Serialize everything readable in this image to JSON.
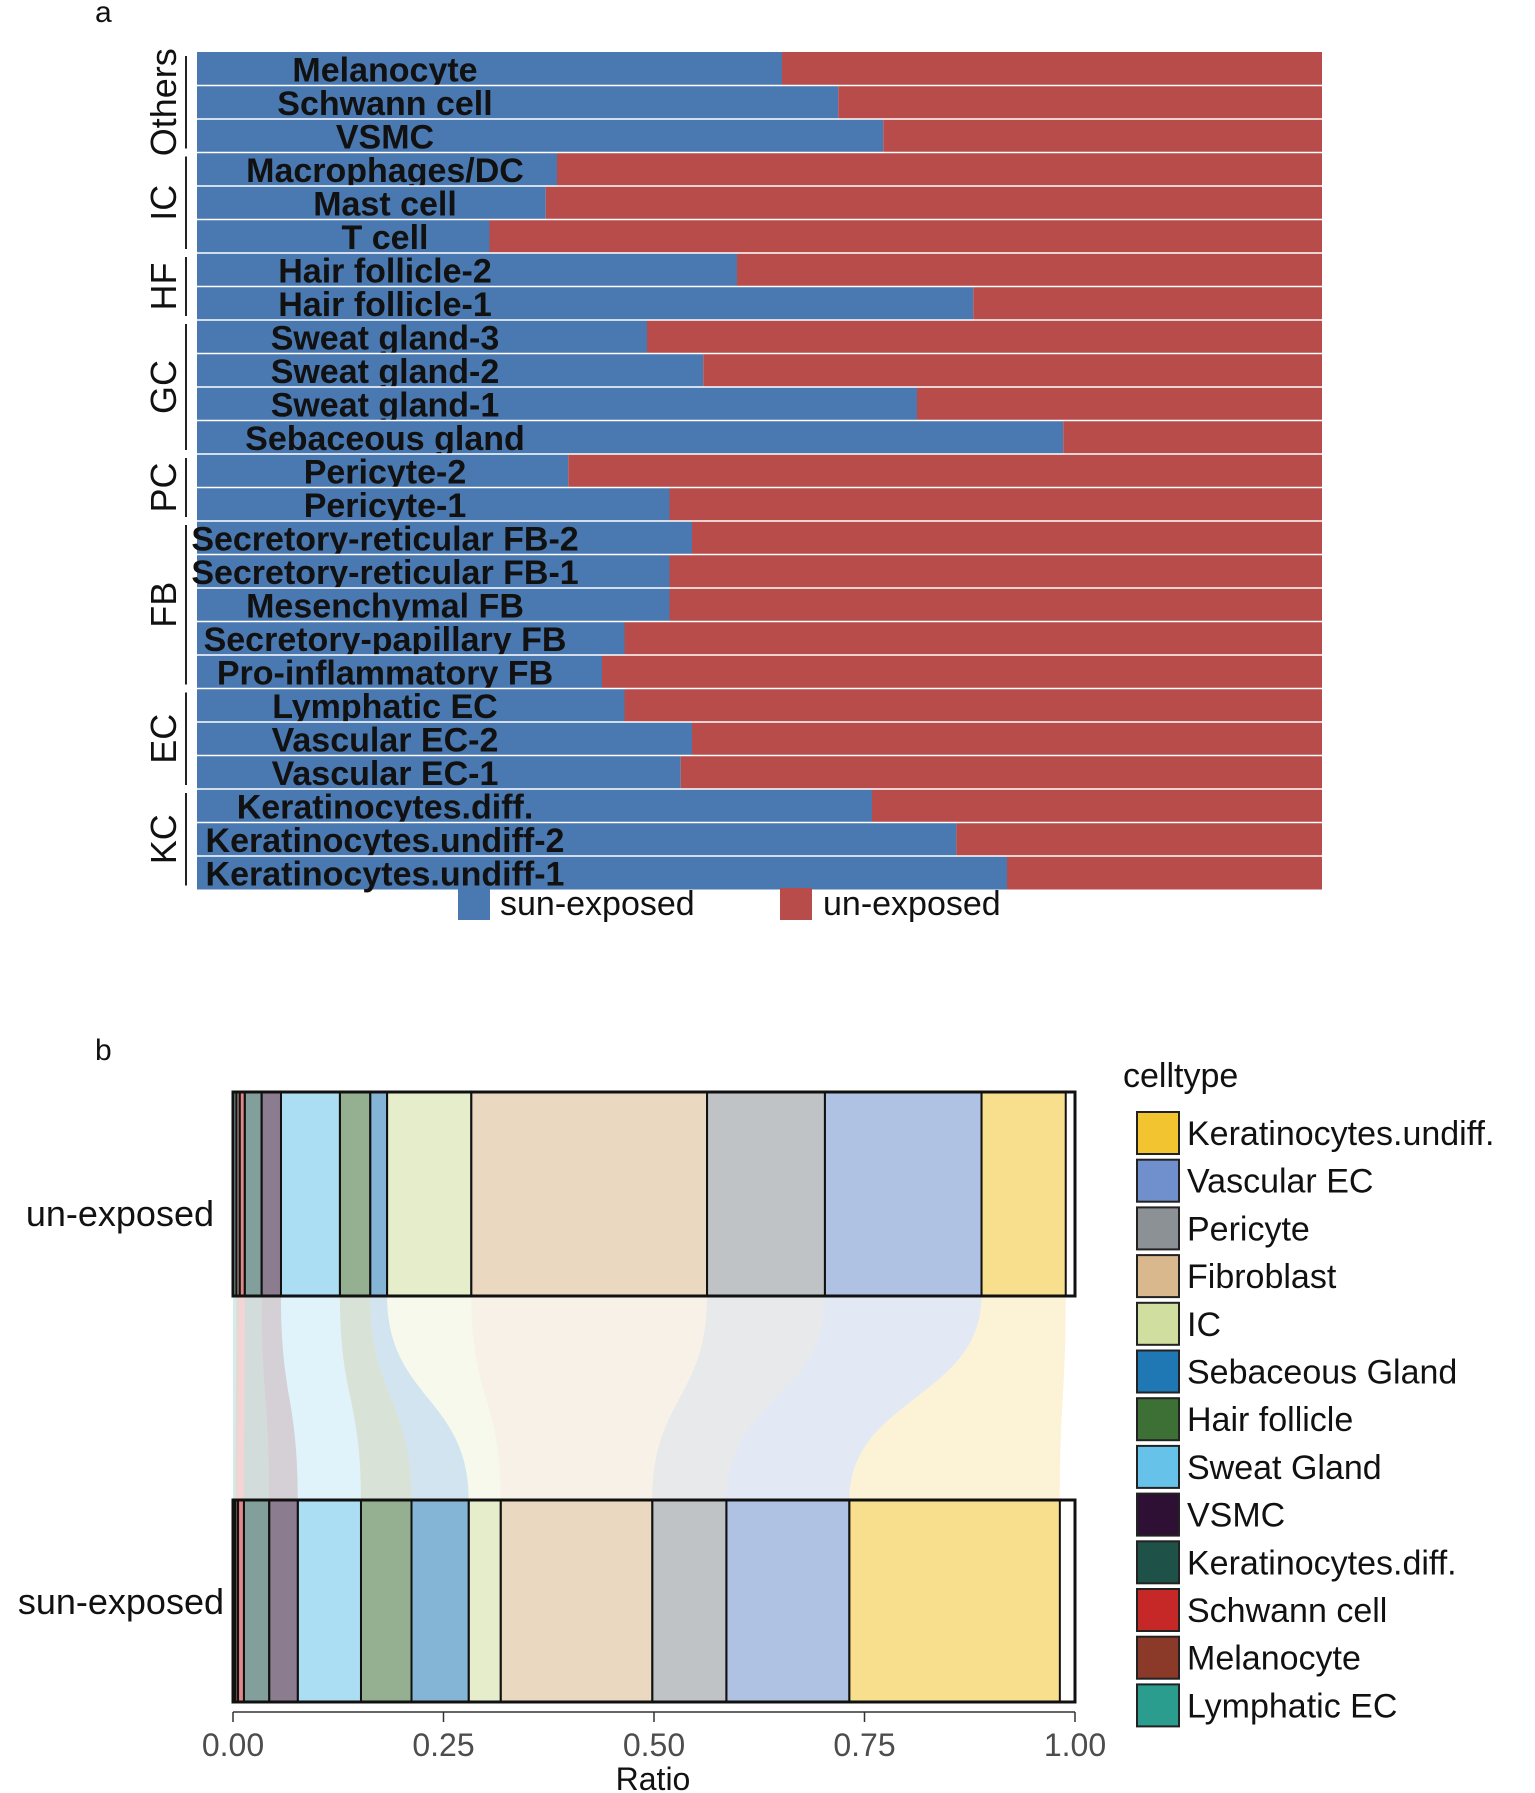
{
  "panel_a": {
    "letter": "a",
    "colors": {
      "sun": "#4a78b0",
      "un": "#b84c4b"
    },
    "legend": [
      {
        "label": "sun-exposed",
        "color": "#4a78b0"
      },
      {
        "label": "un-exposed",
        "color": "#b84c4b"
      }
    ],
    "groups": [
      {
        "label": "Others",
        "start": 0,
        "end": 2
      },
      {
        "label": "IC",
        "start": 3,
        "end": 5
      },
      {
        "label": "HF",
        "start": 6,
        "end": 7
      },
      {
        "label": "GC",
        "start": 8,
        "end": 11
      },
      {
        "label": "PC",
        "start": 12,
        "end": 13
      },
      {
        "label": "FB",
        "start": 14,
        "end": 18
      },
      {
        "label": "EC",
        "start": 19,
        "end": 21
      },
      {
        "label": "KC",
        "start": 22,
        "end": 24
      }
    ]
  },
  "panel_b": {
    "letter": "b",
    "legend_title": "celltype"
  },
  "chart_data": [
    {
      "type": "bar",
      "stacked": "horizontal-proportion",
      "title": "",
      "xlabel": "",
      "ylabel": "",
      "categories": [
        "Melanocyte",
        "Schwann cell",
        "VSMC",
        "Macrophages/DC",
        "Mast cell",
        "T cell",
        "Hair follicle-2",
        "Hair follicle-1",
        "Sweat gland-3",
        "Sweat gland-2",
        "Sweat gland-1",
        "Sebaceous gland",
        "Pericyte-2",
        "Pericyte-1",
        "Secretory-reticular FB-2",
        "Secretory-reticular FB-1",
        "Mesenchymal FB",
        "Secretory-papillary FB",
        "Pro-inflammatory FB",
        "Lymphatic EC",
        "Vascular EC-2",
        "Vascular EC-1",
        "Keratinocytes.diff.",
        "Keratinocytes.undiff-2",
        "Keratinocytes.undiff-1"
      ],
      "series": [
        {
          "name": "sun-exposed",
          "values": [
            0.52,
            0.57,
            0.61,
            0.32,
            0.31,
            0.26,
            0.48,
            0.69,
            0.4,
            0.45,
            0.64,
            0.77,
            0.33,
            0.42,
            0.44,
            0.42,
            0.42,
            0.38,
            0.36,
            0.38,
            0.44,
            0.43,
            0.6,
            0.675,
            0.72
          ]
        },
        {
          "name": "un-exposed",
          "values": [
            0.48,
            0.43,
            0.39,
            0.68,
            0.69,
            0.74,
            0.52,
            0.31,
            0.6,
            0.55,
            0.36,
            0.23,
            0.67,
            0.58,
            0.56,
            0.58,
            0.58,
            0.62,
            0.64,
            0.62,
            0.56,
            0.57,
            0.4,
            0.325,
            0.28
          ]
        }
      ],
      "xlim": [
        0,
        1
      ]
    },
    {
      "type": "bar",
      "stacked": "alluvial-proportion",
      "title": "",
      "xlabel": "Ratio",
      "ylabel": "",
      "xlim": [
        0,
        1
      ],
      "xticks": [
        0,
        0.25,
        0.5,
        0.75,
        1
      ],
      "xtick_labels": [
        "0.00",
        "0.25",
        "0.50",
        "0.75",
        "1.00"
      ],
      "groups": [
        "un-exposed",
        "sun-exposed"
      ],
      "series": [
        {
          "name": "Lymphatic EC",
          "color": "#2a9d8f",
          "values": [
            0.004,
            0.003
          ]
        },
        {
          "name": "Melanocyte",
          "color": "#8b3a2a",
          "values": [
            0.004,
            0.003
          ]
        },
        {
          "name": "Schwann cell",
          "color": "#c62828",
          "values": [
            0.006,
            0.007
          ]
        },
        {
          "name": "Keratinocytes.diff.",
          "color": "#1e5148",
          "values": [
            0.02,
            0.03
          ]
        },
        {
          "name": "VSMC",
          "color": "#2d1033",
          "values": [
            0.023,
            0.034
          ]
        },
        {
          "name": "Sweat Gland",
          "color": "#66c2e8",
          "values": [
            0.07,
            0.075
          ]
        },
        {
          "name": "Hair follicle",
          "color": "#3c7034",
          "values": [
            0.036,
            0.06
          ]
        },
        {
          "name": "Sebaceous Gland",
          "color": "#1f78b4",
          "values": [
            0.02,
            0.068
          ]
        },
        {
          "name": "IC",
          "color": "#d0dfa0",
          "values": [
            0.1,
            0.038
          ]
        },
        {
          "name": "Fibroblast",
          "color": "#d9b88d",
          "values": [
            0.28,
            0.18
          ]
        },
        {
          "name": "Pericyte",
          "color": "#8c9196",
          "values": [
            0.14,
            0.088
          ]
        },
        {
          "name": "Vascular EC",
          "color": "#6f90cc",
          "values": [
            0.186,
            0.146
          ]
        },
        {
          "name": "Keratinocytes.undiff.",
          "color": "#f2c530",
          "values": [
            0.1,
            0.25
          ]
        }
      ],
      "legend_order": [
        "Keratinocytes.undiff.",
        "Vascular EC",
        "Pericyte",
        "Fibroblast",
        "IC",
        "Sebaceous Gland",
        "Hair follicle",
        "Sweat Gland",
        "VSMC",
        "Keratinocytes.diff.",
        "Schwann cell",
        "Melanocyte",
        "Lymphatic EC"
      ]
    }
  ]
}
